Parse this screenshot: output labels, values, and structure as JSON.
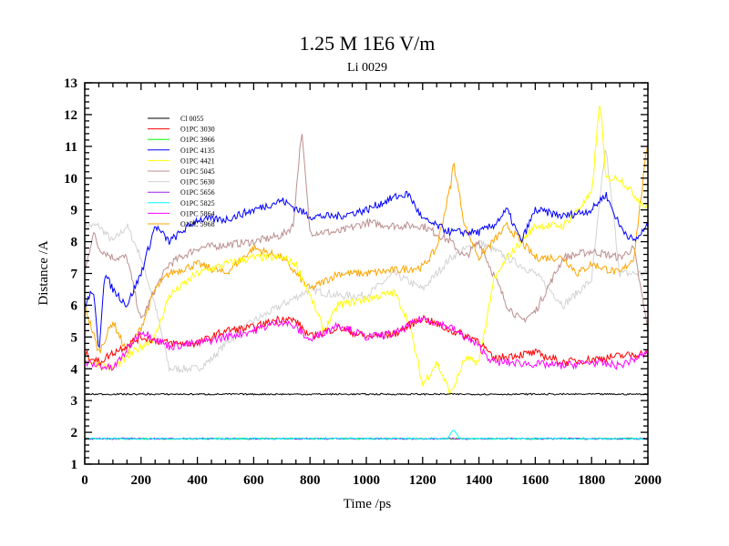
{
  "chart_data": {
    "type": "line",
    "title": "1.25 M 1E6 V/m",
    "subtitle": "Li 0029",
    "xlabel": "Time /ps",
    "ylabel": "Distance /A",
    "xlim": [
      0,
      2000
    ],
    "ylim": [
      1,
      13
    ],
    "xticks": [
      0,
      200,
      400,
      600,
      800,
      1000,
      1200,
      1400,
      1600,
      1800,
      2000
    ],
    "yticks": [
      1,
      2,
      3,
      4,
      5,
      6,
      7,
      8,
      9,
      10,
      11,
      12,
      13
    ],
    "grid": false,
    "legend_position": "top-left",
    "series": [
      {
        "name": "Cl 0055",
        "color": "#000000",
        "x": [
          0,
          400,
          800,
          1200,
          1600,
          2000
        ],
        "y": [
          3.2,
          3.2,
          3.2,
          3.2,
          3.2,
          3.2
        ]
      },
      {
        "name": "O1PC 3030",
        "color": "#ff0000",
        "x": [
          0,
          50,
          100,
          200,
          300,
          400,
          500,
          600,
          700,
          750,
          800,
          900,
          1000,
          1100,
          1200,
          1300,
          1400,
          1450,
          1500,
          1600,
          1700,
          1800,
          1900,
          2000
        ],
        "y": [
          4.5,
          4.2,
          4.5,
          5,
          4.8,
          4.8,
          5.2,
          5.3,
          5.6,
          5.5,
          5,
          5.3,
          5,
          5.1,
          5.6,
          5.2,
          4.9,
          4.3,
          4.4,
          4.5,
          4.2,
          4.3,
          4.4,
          4.5
        ]
      },
      {
        "name": "O1PC 3966",
        "color": "#00ff00",
        "x": [
          0,
          500,
          1000,
          1500,
          2000
        ],
        "y": [
          1.8,
          1.8,
          1.8,
          1.8,
          1.8
        ]
      },
      {
        "name": "O1PC 4135",
        "color": "#0000ff",
        "x": [
          0,
          30,
          50,
          70,
          100,
          150,
          200,
          250,
          300,
          400,
          500,
          600,
          700,
          800,
          900,
          1000,
          1100,
          1150,
          1200,
          1300,
          1400,
          1450,
          1500,
          1550,
          1600,
          1700,
          1800,
          1850,
          1900,
          1950,
          2000
        ],
        "y": [
          6,
          6.5,
          4.5,
          7,
          6.5,
          6,
          7,
          8.5,
          8,
          8.7,
          8.7,
          9,
          9.3,
          8.8,
          8.8,
          9,
          9.4,
          9.5,
          8.7,
          8.3,
          8.3,
          8.5,
          9,
          8,
          9,
          8.8,
          9,
          9.5,
          8.5,
          8,
          8.5
        ]
      },
      {
        "name": "O1PC 4421",
        "color": "#ffff00",
        "x": [
          0,
          100,
          200,
          250,
          300,
          400,
          500,
          600,
          700,
          750,
          800,
          850,
          900,
          1000,
          1100,
          1150,
          1200,
          1250,
          1300,
          1350,
          1400,
          1450,
          1500,
          1600,
          1700,
          1800,
          1830,
          1850,
          1900,
          2000
        ],
        "y": [
          4.3,
          4,
          4.7,
          5,
          6.3,
          7,
          7.3,
          7.5,
          7.5,
          7.3,
          6.3,
          5.2,
          6,
          6.2,
          6.4,
          5.5,
          3.5,
          4.2,
          3.2,
          4.3,
          4.2,
          6.7,
          7.5,
          8.5,
          8.5,
          9.5,
          12.5,
          10,
          10,
          9
        ]
      },
      {
        "name": "O1PC 5045",
        "color": "#bc8f8f",
        "x": [
          0,
          30,
          50,
          100,
          150,
          200,
          250,
          300,
          400,
          500,
          600,
          700,
          740,
          770,
          800,
          900,
          1000,
          1100,
          1200,
          1300,
          1350,
          1400,
          1450,
          1500,
          1550,
          1600,
          1700,
          1800,
          1900,
          1950,
          2000
        ],
        "y": [
          7,
          8.3,
          7.8,
          7.5,
          7.5,
          5.5,
          6.5,
          7.3,
          7.8,
          7.9,
          8,
          8.2,
          8.5,
          11.5,
          8.3,
          8.3,
          8.6,
          8.5,
          8.5,
          8,
          7.5,
          8,
          7,
          6,
          5.5,
          5.8,
          7.5,
          7.7,
          7.5,
          7.8,
          5.2
        ]
      },
      {
        "name": "O1PC 5630",
        "color": "#d3d3d3",
        "x": [
          0,
          50,
          100,
          150,
          200,
          250,
          300,
          400,
          450,
          500,
          600,
          700,
          800,
          900,
          1000,
          1100,
          1200,
          1300,
          1400,
          1500,
          1600,
          1700,
          1800,
          1850,
          1900,
          2000
        ],
        "y": [
          8.5,
          8.5,
          8,
          8.5,
          7.5,
          6,
          4,
          4,
          4.3,
          4.8,
          5.5,
          6,
          6.5,
          6.3,
          6.3,
          7,
          6.5,
          7.5,
          8,
          7.5,
          7,
          6,
          6.8,
          11,
          7,
          7
        ]
      },
      {
        "name": "O1PC 5656",
        "color": "#a020f0",
        "x": [
          0,
          1000,
          2000
        ],
        "y": [
          1.8,
          1.8,
          1.8
        ]
      },
      {
        "name": "O1PC 5825",
        "color": "#00ffff",
        "x": [
          0,
          500,
          1000,
          1290,
          1310,
          1330,
          1500,
          2000
        ],
        "y": [
          1.8,
          1.8,
          1.8,
          1.8,
          2.1,
          1.8,
          1.8,
          1.8
        ]
      },
      {
        "name": "O1PC 5864",
        "color": "#ff00ff",
        "x": [
          0,
          100,
          200,
          300,
          400,
          500,
          600,
          700,
          750,
          800,
          900,
          1000,
          1100,
          1200,
          1300,
          1400,
          1450,
          1500,
          1700,
          1800,
          1900,
          2000
        ],
        "y": [
          4.2,
          4,
          5.2,
          4.7,
          4.8,
          5,
          5.2,
          5.5,
          5.3,
          4.9,
          5.4,
          5,
          5.1,
          5.6,
          5.3,
          4.7,
          4.2,
          4.2,
          4.1,
          4.2,
          4.1,
          4.5
        ]
      },
      {
        "name": "O1PC 5968",
        "color": "#ffa500",
        "x": [
          0,
          50,
          100,
          150,
          200,
          250,
          300,
          400,
          500,
          600,
          700,
          800,
          900,
          1000,
          1100,
          1200,
          1250,
          1300,
          1310,
          1350,
          1400,
          1500,
          1600,
          1700,
          1750,
          1800,
          1900,
          1950,
          2000
        ],
        "y": [
          6,
          4.5,
          5.5,
          4.5,
          5.3,
          6.5,
          7,
          7.3,
          7,
          7.8,
          7.5,
          6.5,
          7,
          7,
          7.1,
          7.2,
          7.8,
          9.8,
          10.5,
          8.5,
          7.5,
          8.5,
          7.5,
          7.5,
          7,
          7.3,
          7,
          7.5,
          11.2
        ]
      }
    ]
  }
}
